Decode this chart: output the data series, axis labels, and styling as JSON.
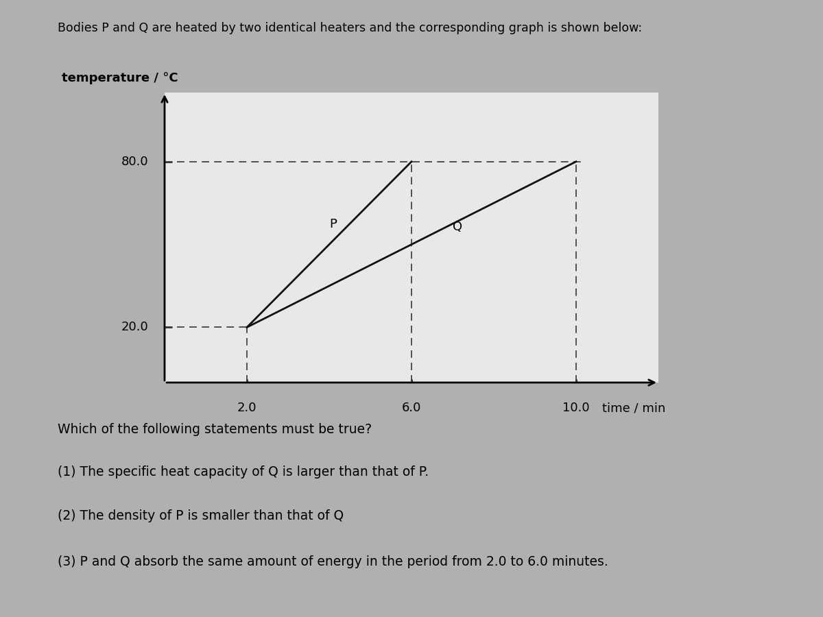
{
  "title": "Bodies P and Q are heated by two identical heaters and the corresponding graph is shown below:",
  "ylabel": "temperature / °C",
  "xlabel": "time / min",
  "outer_bg_color": "#b0b0b0",
  "card_bg_color": "#e8e8e8",
  "plot_bg_color": "#e8e8e8",
  "P_line": [
    [
      2.0,
      20.0
    ],
    [
      6.0,
      80.0
    ]
  ],
  "Q_line": [
    [
      2.0,
      20.0
    ],
    [
      10.0,
      80.0
    ]
  ],
  "P_label": "P",
  "Q_label": "Q",
  "y_ticks": [
    20.0,
    80.0
  ],
  "x_ticks": [
    2.0,
    6.0,
    10.0
  ],
  "x_tick_labels": [
    "2.0",
    "6.0",
    "10.0"
  ],
  "y_tick_labels": [
    "20.0",
    "80.0"
  ],
  "dashed_color": "#444444",
  "line_color": "#111111",
  "xlim": [
    0,
    12.0
  ],
  "ylim": [
    0,
    105
  ],
  "statements": [
    "Which of the following statements must be true?",
    "(1) The specific heat capacity of Q is larger than that of P.",
    "(2) The density of P is smaller than that of Q",
    "(3) P and Q absorb the same amount of energy in the period from 2.0 to 6.0 minutes."
  ],
  "title_fontsize": 12.5,
  "label_fontsize": 13,
  "tick_fontsize": 13,
  "statement_fontsize": 13.5,
  "ylabel_fontsize": 13,
  "ylabel_bold": true
}
